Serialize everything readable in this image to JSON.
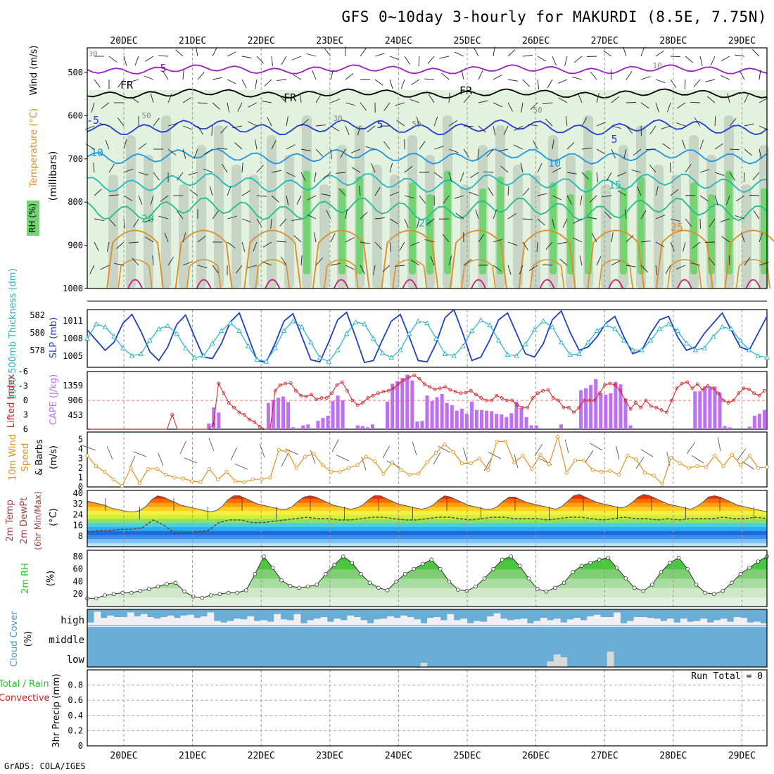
{
  "title": "GFS 0~10day 3-hourly for MAKURDI (8.5E, 7.75N)",
  "credit": "GrADS: COLA/IGES",
  "colors": {
    "rh_light": "#e2f2df",
    "rh_mid": "#c3cfc1",
    "rh_dark": "#75d472",
    "rh_max": "#22c622",
    "temp_purple": "#9b1fbf",
    "temp_blue": "#1f3fd4",
    "temp_lightblue": "#1e96e0",
    "temp_teal": "#20b8b8",
    "temp_green": "#1ec08a",
    "temp_orange": "#e08c1e",
    "temp_magenta": "#d0127a",
    "slp": "#1f3fc8",
    "thickness": "#22b2c2",
    "lifted_index": "#d42020",
    "cape": "#bf6ff2",
    "wind10": "#e0921e",
    "rh2m": "#22c622",
    "cloud": "#6aaed6",
    "cloud_clear": "#f1eef4"
  },
  "chart_data": [
    {
      "type": "area",
      "name": "cross-section",
      "xlabels_top": [
        "20DEC",
        "21DEC",
        "22DEC",
        "23DEC",
        "24DEC",
        "25DEC",
        "26DEC",
        "27DEC",
        "28DEC",
        "29DEC"
      ],
      "ylabel": "(millibars)",
      "legend": [
        "RH (%)",
        "Temperature (°C)",
        "Wind (m/s)"
      ],
      "yticks": [
        500,
        600,
        700,
        800,
        900,
        1000
      ],
      "ylim": [
        1000,
        450
      ],
      "contours": [
        {
          "label": "5",
          "level": 0.09,
          "amp": 0.012,
          "color": "temp_purple"
        },
        {
          "label": "FR",
          "level": 0.19,
          "amp": 0.012,
          "color": "#000"
        },
        {
          "label": "-5",
          "level": 0.33,
          "amp": 0.02,
          "color": "temp_blue"
        },
        {
          "label": "10",
          "level": 0.45,
          "amp": 0.02,
          "color": "temp_lightblue"
        },
        {
          "label": "15",
          "level": 0.56,
          "amp": 0.025,
          "color": "temp_teal"
        },
        {
          "label": "20",
          "level": 0.67,
          "amp": 0.03,
          "color": "temp_green"
        }
      ],
      "contour_labels": [
        "5",
        "FR",
        "FR",
        "FR",
        "-5",
        "5",
        "5",
        "10",
        "10",
        "15",
        "20",
        "20",
        "25",
        "30",
        "50",
        "30",
        "50",
        "50",
        "10"
      ]
    },
    {
      "type": "line",
      "name": "thickness-slp",
      "ylabel_left": "1000-500mb Thickness (dm)",
      "ylabel_right": "SLP (mb)",
      "yticks_left": [
        "582",
        "580",
        "578"
      ],
      "yticks_right": [
        "1011",
        "1008",
        "1005"
      ],
      "series": [
        {
          "name": "SLP",
          "ylim": [
            1003.5,
            1012
          ],
          "values": [
            1009.0,
            1007.5,
            1006.0,
            1007.2,
            1010.0,
            1011.3,
            1008.8,
            1005.8,
            1004.5,
            1006.5,
            1009.8,
            1011.2,
            1008.0,
            1005.0,
            1004.8,
            1007.0,
            1010.2,
            1011.5,
            1008.0,
            1004.5,
            1004.2,
            1007.0,
            1010.3,
            1011.4,
            1008.0,
            1004.6,
            1004.3,
            1007.2,
            1010.5,
            1011.6,
            1008.0,
            1004.2,
            1004.5,
            1007.5,
            1010.3,
            1011.3,
            1008.0,
            1004.5,
            1004.3,
            1007.0,
            1010.8,
            1012.0,
            1008.5,
            1004.5,
            1005.0,
            1007.5,
            1010.5,
            1011.5,
            1008.5,
            1005.5,
            1005.0,
            1007.0,
            1010.5,
            1011.8,
            1008.6,
            1006.0,
            1006.5,
            1008.0,
            1010.0,
            1011.0,
            1008.0,
            1005.5,
            1006.0,
            1008.5,
            1010.5,
            1011.0,
            1008.0,
            1006.0,
            1006.5,
            1008.5,
            1010.0,
            1011.5,
            1009.0,
            1006.5,
            1006.0,
            1008.5,
            1011.0
          ]
        },
        {
          "name": "Thickness",
          "ylim": [
            577.0,
            583.0
          ],
          "values": [
            580.0,
            581.5,
            581.2,
            580.2,
            579.0,
            578.2,
            578.4,
            579.8,
            581.0,
            581.3,
            580.5,
            579.0,
            578.0,
            578.2,
            579.5,
            580.8,
            581.6,
            580.8,
            579.2,
            577.8,
            577.6,
            579.0,
            580.8,
            581.8,
            581.2,
            579.6,
            578.0,
            577.6,
            578.8,
            580.5,
            581.7,
            581.5,
            580.0,
            578.5,
            578.0,
            578.8,
            580.5,
            581.8,
            581.6,
            580.0,
            578.4,
            578.2,
            579.2,
            580.8,
            581.9,
            581.4,
            579.8,
            578.3,
            578.2,
            579.4,
            580.9,
            581.8,
            581.2,
            579.6,
            578.3,
            578.4,
            579.6,
            580.8,
            581.4,
            581.0,
            579.8,
            578.8,
            578.8,
            579.8,
            581.0,
            581.5,
            580.8,
            579.5,
            578.8,
            579.0,
            580.2,
            581.2,
            581.0,
            579.8,
            578.8,
            578.2,
            578.0
          ]
        }
      ]
    },
    {
      "type": "bar",
      "name": "cape-lifted-index",
      "ylabel_left": "Lifted Index",
      "ylabel_right": "CAPE (J/kg)",
      "yticks_left": [
        "-6",
        "-3",
        "0",
        "3",
        "6"
      ],
      "yticks_right": [
        "1359",
        "906",
        "453"
      ],
      "ylim_cape": [
        0,
        1800
      ],
      "cape": [
        0,
        0,
        0,
        0,
        0,
        0,
        0,
        0,
        0,
        0,
        0,
        0,
        0,
        0,
        0,
        0,
        0,
        0,
        0,
        0,
        0,
        0,
        0,
        0,
        180,
        680,
        520,
        0,
        0,
        0,
        0,
        0,
        0,
        0,
        0,
        0,
        820,
        920,
        980,
        1020,
        850,
        60,
        0,
        120,
        150,
        0,
        260,
        350,
        420,
        880,
        1050,
        900,
        0,
        0,
        120,
        100,
        60,
        150,
        0,
        0,
        860,
        1420,
        1500,
        1600,
        1700,
        1520,
        240,
        260,
        1050,
        880,
        1000,
        1100,
        820,
        750,
        580,
        640,
        480,
        860,
        600,
        600,
        580,
        560,
        480,
        460,
        380,
        500,
        860,
        660,
        380,
        120,
        120,
        0,
        0,
        0,
        0,
        150,
        0,
        0,
        0,
        1220,
        1280,
        1380,
        1560,
        1120,
        1080,
        1120,
        1480,
        1400,
        960,
        120,
        0,
        0,
        0,
        0,
        0,
        0,
        0,
        0,
        0,
        0,
        0,
        0,
        1180,
        1180,
        1340,
        1300,
        1330,
        1150,
        100,
        60,
        0,
        0,
        0,
        80,
        420,
        480,
        600
      ],
      "lifted_index": [
        6,
        6,
        6,
        6,
        6,
        6,
        6,
        6,
        6,
        6,
        6,
        6,
        6,
        6,
        6,
        6,
        3,
        6,
        6,
        6,
        6,
        6,
        6,
        6,
        5,
        -3.5,
        -1.5,
        0.5,
        1.5,
        2.5,
        3.0,
        4.0,
        4.5,
        5.5,
        6,
        6,
        -2,
        -3.2,
        -3.5,
        -3.6,
        -2.0,
        -1.0,
        -0.8,
        -1.2,
        -0.2,
        -0.5,
        -0.5,
        -1.5,
        -3.2,
        -3.8,
        -2.0,
        0,
        1,
        0.5,
        -0.5,
        -1,
        -1.5,
        -1.8,
        -2.0,
        -2.5,
        -3.5,
        -4.2,
        -4.8,
        -5.2,
        -4.5,
        -3.4,
        -2.8,
        -2.3,
        -2.5,
        -2.8,
        -2.2,
        -1.8,
        -1.5,
        -1.6,
        -2.0,
        -1.2,
        -0.5,
        0,
        0,
        -1.0,
        -0.5,
        0,
        0,
        1,
        1.5,
        1.5,
        -0.5,
        -1.5,
        -2.0,
        -2.2,
        -0.5,
        0,
        1.5,
        1.5,
        2.5,
        1.5,
        0,
        0,
        0,
        -1.5,
        -3.2,
        -3.5,
        -3.2,
        -2.0,
        0,
        1.8,
        0.5,
        1.5,
        0,
        1.2,
        1.5,
        2.0,
        2.5,
        0,
        -2.5,
        -3.5,
        -3.8,
        -2.5,
        -3.4,
        -2.2,
        -3.0,
        -2.5,
        -1.5,
        0,
        0.5,
        0,
        -1.5,
        -2.5,
        -2.3,
        -1.5,
        -1.0,
        -2.0
      ]
    },
    {
      "type": "line",
      "name": "wind10m",
      "ylabel": "10m Wind Speed (m/s) & Barbs",
      "yticks": [
        "0",
        "1",
        "2",
        "3",
        "4",
        "5"
      ],
      "ylim": [
        0,
        5.5
      ],
      "values": [
        3.3,
        2.2,
        1.6,
        0.8,
        0.1,
        2.0,
        0.4,
        1.9,
        1.9,
        1.3,
        1.0,
        0.9,
        0.6,
        0.5,
        1.9,
        0.8,
        1.6,
        0.6,
        0.5,
        0.8,
        0.8,
        1.0,
        3.9,
        3.7,
        2.0,
        3.2,
        3.5,
        2.3,
        1.6,
        1.6,
        2.0,
        2.3,
        3.2,
        2.7,
        1.4,
        2.6,
        1.8,
        1.3,
        1.4,
        2.6,
        3.6,
        4.5,
        3.7,
        2.5,
        2.5,
        3.0,
        1.8,
        4.8,
        4.8,
        2.6,
        3.3,
        1.9,
        3.4,
        2.4,
        5.3,
        1.5,
        2.8,
        2.8,
        1.8,
        1.6,
        1.7,
        1.3,
        3.3,
        2.9,
        1.5,
        1.2,
        0.3,
        3.1,
        2.5,
        2.0,
        2.2,
        2.1,
        3.3,
        2.2,
        3.4,
        2.3,
        3.3,
        2.0,
        2.1
      ]
    },
    {
      "type": "area",
      "name": "temp-dewpoint",
      "ylabel": "2m Temp 2m DewPt (6hr Min/Max) (°C)",
      "yticks": [
        "8",
        "16",
        "24",
        "32",
        "40"
      ],
      "ylim": [
        0,
        42
      ],
      "temp": [
        34,
        33,
        32,
        31,
        29,
        28,
        27,
        26,
        26,
        27,
        30,
        35,
        38,
        37,
        35,
        33,
        31,
        30,
        29,
        28,
        27,
        26,
        27,
        30,
        35,
        38,
        38,
        36,
        34,
        32,
        31,
        30,
        29,
        28,
        28,
        30,
        34,
        37,
        38,
        37,
        35,
        33,
        31,
        30,
        29,
        28,
        29,
        31,
        35,
        38,
        38,
        36,
        34,
        32,
        31,
        30,
        29,
        28,
        29,
        31,
        35,
        38,
        37,
        35,
        33,
        31,
        30,
        29,
        28,
        28,
        30,
        34,
        37,
        37,
        35,
        33,
        32,
        31,
        30,
        29,
        28,
        30,
        34,
        38,
        39,
        37,
        35,
        33,
        32,
        31,
        30,
        29,
        30,
        33,
        37,
        39,
        38,
        36,
        34,
        32,
        31,
        30,
        29,
        28,
        30,
        33,
        37,
        38,
        37,
        35,
        33,
        31,
        30,
        29,
        28,
        27,
        26
      ],
      "dewpoint": [
        11,
        12,
        12,
        13,
        13,
        14,
        20,
        16,
        10,
        10,
        11,
        12,
        18,
        20,
        20,
        18,
        18,
        19,
        20,
        21,
        22,
        21,
        21,
        20,
        20,
        21,
        22,
        22,
        21,
        20,
        20,
        21,
        22,
        22,
        21,
        20,
        21,
        22,
        22,
        21,
        21,
        21,
        20,
        21,
        22,
        22,
        21,
        20,
        21,
        22,
        21,
        21,
        20,
        21,
        20,
        21,
        21,
        21,
        22,
        21,
        21,
        22,
        21
      ]
    },
    {
      "type": "area",
      "name": "rh2m",
      "ylabel": "2m RH (%)",
      "yticks": [
        "20",
        "40",
        "60",
        "80"
      ],
      "ylim": [
        0,
        90
      ],
      "values": [
        13,
        13,
        18,
        20,
        22,
        22,
        25,
        28,
        32,
        36,
        38,
        24,
        16,
        14,
        18,
        20,
        22,
        22,
        26,
        52,
        80,
        62,
        42,
        33,
        30,
        32,
        35,
        52,
        67,
        80,
        70,
        52,
        38,
        30,
        26,
        40,
        52,
        60,
        68,
        75,
        60,
        40,
        27,
        25,
        32,
        45,
        60,
        75,
        80,
        65,
        45,
        28,
        24,
        30,
        38,
        55,
        65,
        70,
        75,
        78,
        62,
        45,
        30,
        25,
        35,
        55,
        70,
        78,
        60,
        35,
        22,
        20,
        25,
        38,
        52,
        62,
        72,
        80
      ]
    },
    {
      "type": "bar",
      "name": "cloud-cover",
      "ylabel": "Cloud Cover (%)",
      "rows": [
        "high",
        "middle",
        "low"
      ],
      "high": [
        0.85,
        0.15,
        0.55,
        0.4,
        0.5,
        0.5,
        0.2,
        0.45,
        0.3,
        0.5,
        0.6,
        0.5,
        0.4,
        0.55,
        0.4,
        0.35,
        0.55,
        0.45,
        0.2,
        0.75,
        0.85,
        0.75,
        0.6,
        0.65,
        0.45,
        0.75,
        0.7,
        0.8,
        0.3,
        0.65,
        0.7,
        0.3,
        0.9,
        0.7,
        0.6,
        0.5,
        0.8,
        0.6,
        0.7,
        0.4,
        0.5,
        0.7,
        0.9,
        0.65,
        0.6,
        0.45,
        0.55,
        0.4,
        0.5,
        0.65,
        0.9,
        0.55,
        0.5,
        0.7,
        0.3,
        0.7,
        0.6,
        0.9,
        0.75,
        0.8,
        0.45,
        0.25,
        0.6,
        0.7,
        0.65,
        0.6,
        0.9,
        0.75,
        0.55,
        0.7,
        0.6,
        0.85,
        0.65,
        0.55,
        0.7,
        0.45,
        0.35,
        0.5,
        0.5,
        0.2,
        0.9,
        0.75,
        0.5,
        0.5,
        0.55,
        0.6,
        0.75,
        0.6,
        0.85,
        0.6,
        0.8,
        0.75,
        0.6,
        0.85,
        0.7,
        0.6,
        0.8,
        0.5,
        0.55,
        0.85,
        0.8,
        0.9
      ],
      "middle_low": [
        1,
        1,
        1,
        1,
        1,
        1,
        1,
        1,
        1,
        1,
        1,
        1,
        1,
        1,
        1,
        1,
        1,
        1,
        1,
        1,
        1,
        1,
        1,
        1,
        1,
        1,
        1,
        1,
        1,
        1,
        1,
        1,
        1,
        1,
        1,
        1,
        1,
        1,
        1,
        1,
        1,
        1,
        1,
        1,
        1,
        1,
        1,
        1,
        1,
        1,
        0.85,
        1,
        1,
        1,
        1,
        1,
        1,
        1,
        1,
        1,
        1,
        1,
        1,
        1,
        1,
        1,
        1,
        1,
        1,
        0.8,
        0.55,
        0.65,
        1,
        1,
        1,
        1,
        1,
        1,
        0.45,
        1,
        1,
        1,
        1,
        1,
        1,
        1,
        1,
        1,
        1,
        1,
        1,
        1,
        1,
        1,
        1,
        1,
        1,
        1,
        1,
        1,
        1,
        1
      ]
    },
    {
      "type": "bar",
      "name": "precip",
      "ylabel": "3hr Precip (mm)",
      "legend": [
        "Total / Rain",
        "Convective"
      ],
      "yticks": [
        "0",
        "0.2",
        "0.4",
        "0.6",
        "0.8"
      ],
      "ylim": [
        0,
        1
      ],
      "values": [],
      "run_total": "Run Total = 0",
      "xlabels_bottom": [
        "20DEC",
        "21DEC",
        "22DEC",
        "23DEC",
        "24DEC",
        "25DEC",
        "26DEC",
        "27DEC",
        "28DEC",
        "29DEC"
      ]
    }
  ]
}
